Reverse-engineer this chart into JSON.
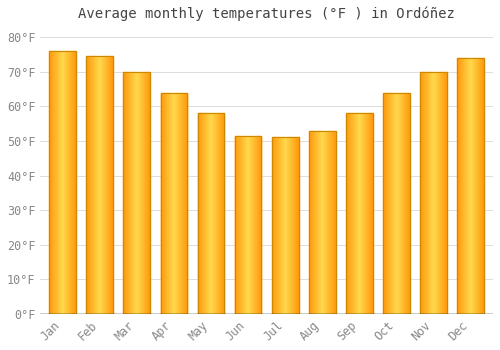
{
  "title": "Average monthly temperatures (°F ) in Ordóñez",
  "months": [
    "Jan",
    "Feb",
    "Mar",
    "Apr",
    "May",
    "Jun",
    "Jul",
    "Aug",
    "Sep",
    "Oct",
    "Nov",
    "Dec"
  ],
  "values": [
    76,
    74.5,
    70,
    64,
    58,
    51.5,
    51,
    53,
    58,
    64,
    70,
    74
  ],
  "bar_color_main": "#FFA500",
  "bar_color_light": "#FFD966",
  "bar_edge_color": "#CC8800",
  "background_color": "#ffffff",
  "plot_bg_color": "#ffffff",
  "grid_color": "#dddddd",
  "yticks": [
    0,
    10,
    20,
    30,
    40,
    50,
    60,
    70,
    80
  ],
  "ylim": [
    0,
    83
  ],
  "title_fontsize": 10,
  "tick_fontsize": 8.5,
  "font_family": "monospace",
  "tick_color": "#888888",
  "title_color": "#444444"
}
